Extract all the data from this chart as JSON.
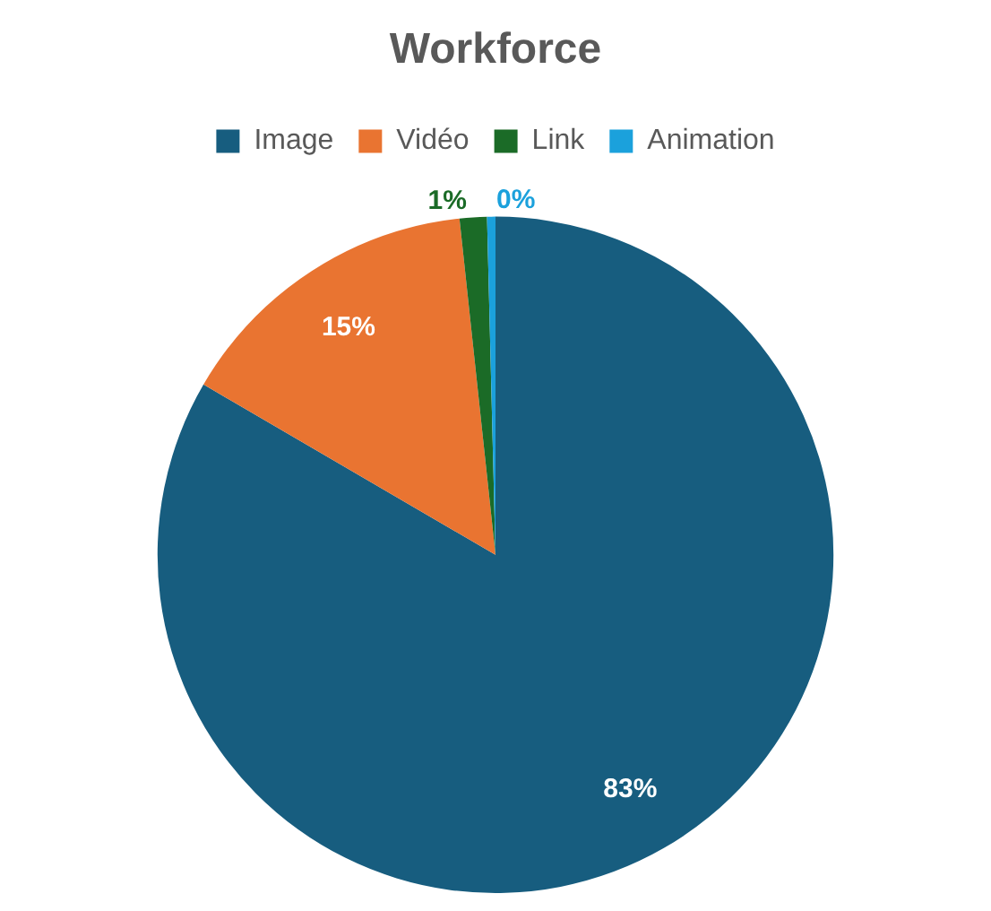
{
  "chart_data": {
    "type": "pie",
    "title": "Workforce",
    "categories": [
      "Image",
      "Vidéo",
      "Link",
      "Animation"
    ],
    "values": [
      83.4,
      14.9,
      1.3,
      0.4
    ],
    "colors": [
      "#175d7f",
      "#e97431",
      "#1b6b27",
      "#1ba1dc"
    ],
    "value_labels": [
      "83%",
      "15%",
      "1%",
      "0%"
    ],
    "legend": "top"
  }
}
